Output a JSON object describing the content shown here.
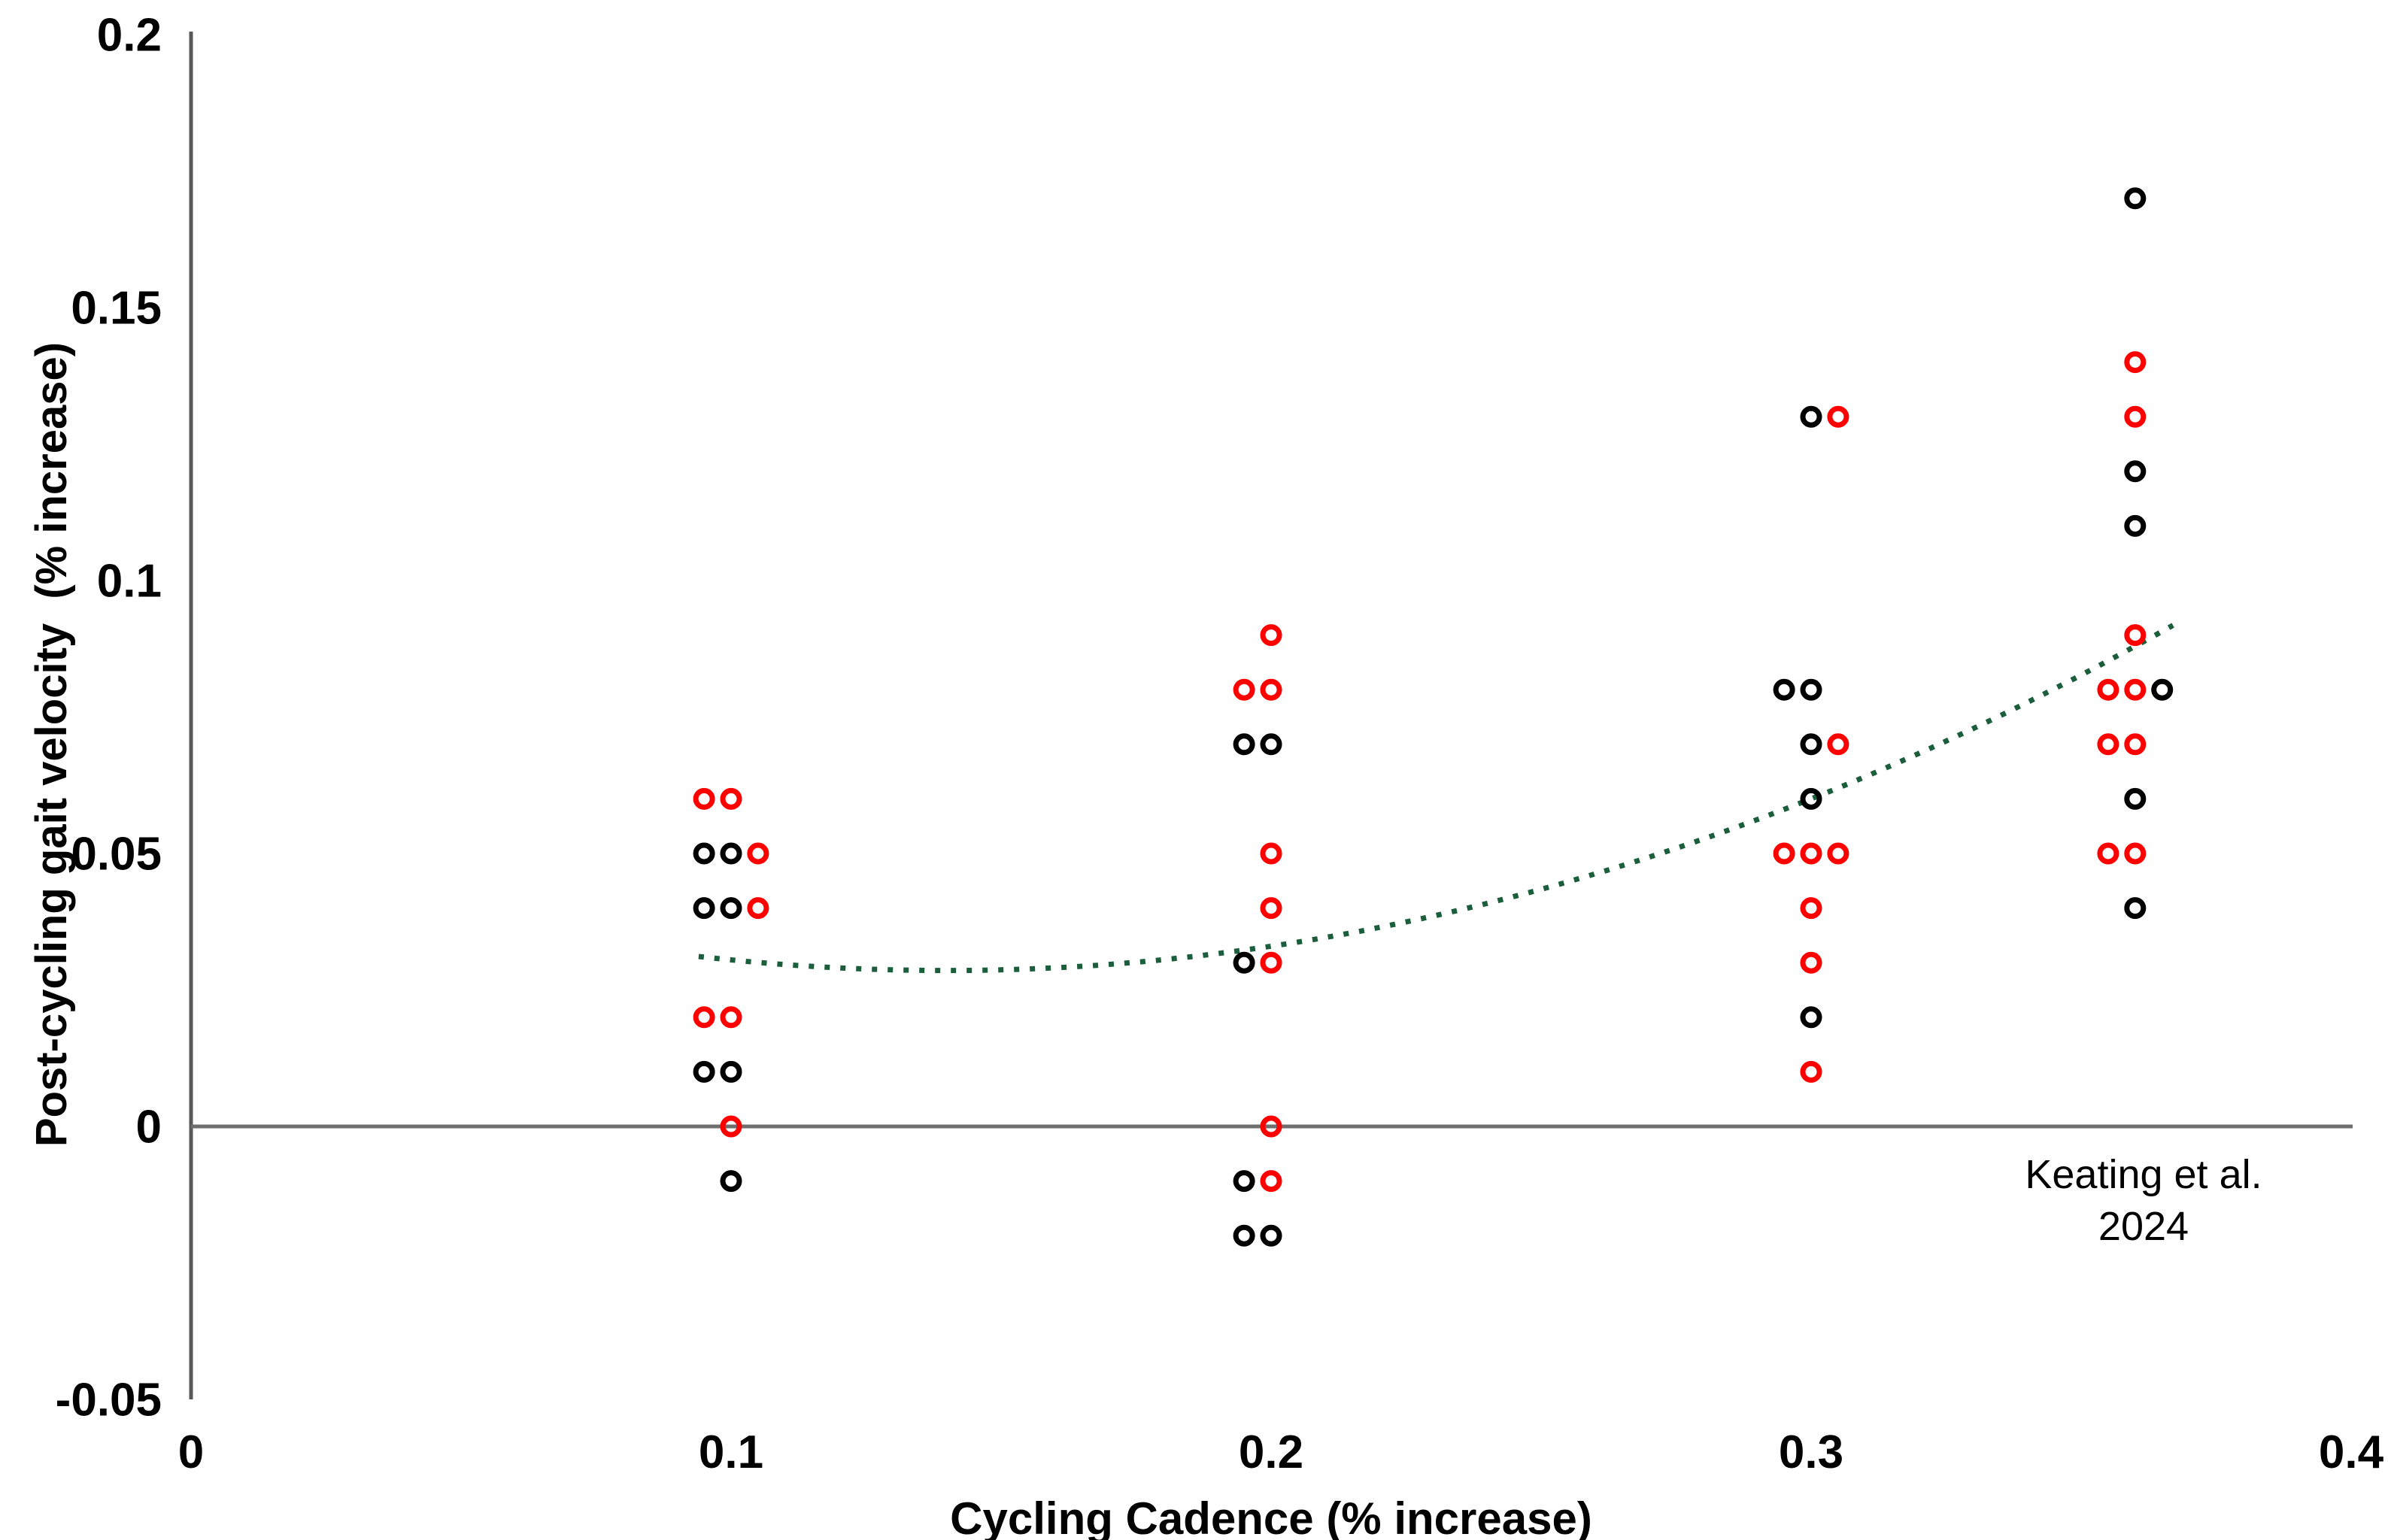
{
  "chart_data": {
    "type": "scatter",
    "title": "",
    "xlabel": "Cycling Cadence (% increase)",
    "ylabel": "Post-cycling gait velocity  (% increase)",
    "xlim": [
      0,
      0.4
    ],
    "ylim": [
      -0.05,
      0.2
    ],
    "grid": false,
    "legend": "none",
    "x_ticks": [
      {
        "value": 0,
        "label": "0"
      },
      {
        "value": 0.1,
        "label": "0.1"
      },
      {
        "value": 0.2,
        "label": "0.2"
      },
      {
        "value": 0.3,
        "label": "0.3"
      },
      {
        "value": 0.4,
        "label": "0.4"
      }
    ],
    "y_ticks": [
      {
        "value": 0.2,
        "label": "0.2"
      },
      {
        "value": 0.15,
        "label": "0.15"
      },
      {
        "value": 0.1,
        "label": "0.1"
      },
      {
        "value": 0.05,
        "label": "0.05"
      },
      {
        "value": 0,
        "label": "0"
      },
      {
        "value": -0.05,
        "label": "-0.05"
      }
    ],
    "marker": {
      "shape": "open-circle",
      "radius": 11,
      "stroke_width": 7
    },
    "series": [
      {
        "name": "black-circles",
        "color": "#000000",
        "points": [
          [
            0.095,
            0.05
          ],
          [
            0.1,
            0.05
          ],
          [
            0.095,
            0.04
          ],
          [
            0.1,
            0.04
          ],
          [
            0.095,
            0.01
          ],
          [
            0.1,
            0.01
          ],
          [
            0.1,
            -0.01
          ],
          [
            0.195,
            0.07
          ],
          [
            0.2,
            0.07
          ],
          [
            0.195,
            0.03
          ],
          [
            0.195,
            -0.01
          ],
          [
            0.195,
            -0.02
          ],
          [
            0.2,
            -0.02
          ],
          [
            0.3,
            0.13
          ],
          [
            0.295,
            0.08
          ],
          [
            0.3,
            0.08
          ],
          [
            0.3,
            0.07
          ],
          [
            0.3,
            0.06
          ],
          [
            0.3,
            0.02
          ],
          [
            0.36,
            0.17
          ],
          [
            0.36,
            0.12
          ],
          [
            0.36,
            0.11
          ],
          [
            0.365,
            0.08
          ],
          [
            0.36,
            0.06
          ],
          [
            0.36,
            0.04
          ]
        ]
      },
      {
        "name": "red-circles",
        "color": "#ff0000",
        "points": [
          [
            0.095,
            0.06
          ],
          [
            0.1,
            0.06
          ],
          [
            0.105,
            0.05
          ],
          [
            0.105,
            0.04
          ],
          [
            0.095,
            0.02
          ],
          [
            0.1,
            0.02
          ],
          [
            0.1,
            0.0
          ],
          [
            0.2,
            0.09
          ],
          [
            0.195,
            0.08
          ],
          [
            0.2,
            0.08
          ],
          [
            0.2,
            0.05
          ],
          [
            0.2,
            0.04
          ],
          [
            0.2,
            0.03
          ],
          [
            0.2,
            0.0
          ],
          [
            0.2,
            -0.01
          ],
          [
            0.305,
            0.13
          ],
          [
            0.305,
            0.07
          ],
          [
            0.295,
            0.05
          ],
          [
            0.3,
            0.05
          ],
          [
            0.305,
            0.05
          ],
          [
            0.3,
            0.04
          ],
          [
            0.3,
            0.03
          ],
          [
            0.3,
            0.01
          ],
          [
            0.36,
            0.14
          ],
          [
            0.36,
            0.13
          ],
          [
            0.36,
            0.09
          ],
          [
            0.355,
            0.08
          ],
          [
            0.36,
            0.08
          ],
          [
            0.355,
            0.07
          ],
          [
            0.36,
            0.07
          ],
          [
            0.355,
            0.05
          ],
          [
            0.36,
            0.05
          ]
        ]
      }
    ],
    "trendline": {
      "type": "polynomial-order-2",
      "equation": "y = 1.225x^2 - 0.3425x + 0.0525",
      "coefficients": {
        "a": 1.225,
        "b": -0.3425,
        "c": 0.0525
      },
      "domain": [
        0.094,
        0.367
      ],
      "style": "dotted",
      "color": "#1b5e3b"
    },
    "annotation": {
      "line1": "Keating et al.",
      "line2": "2024"
    },
    "colors": {
      "axis_line": "#595959",
      "zero_line": "#6e6e6e",
      "text": "#000000"
    }
  }
}
